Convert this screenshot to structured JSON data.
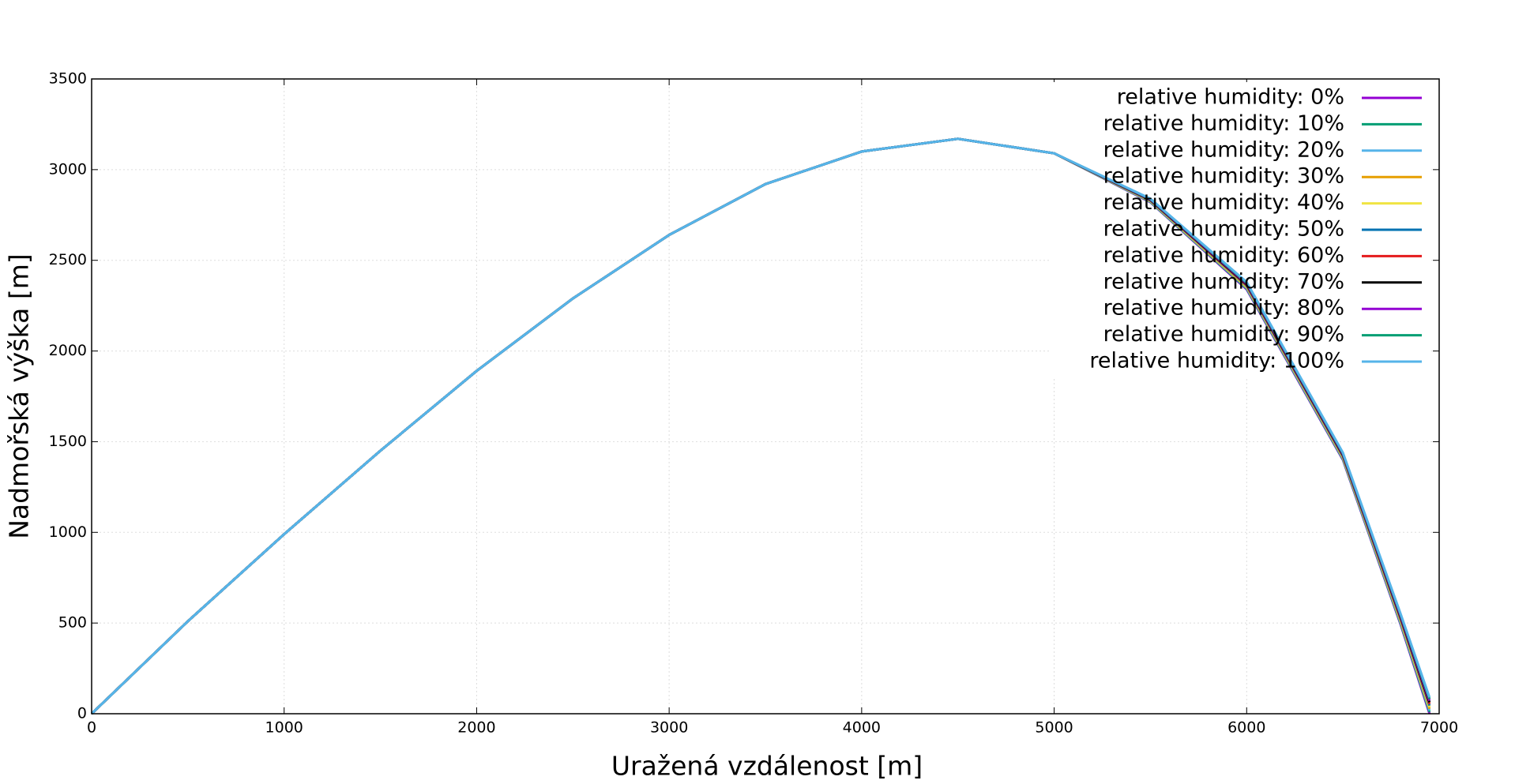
{
  "chart_data": {
    "type": "line",
    "xlabel": "Uražená vzdálenost [m]",
    "ylabel": "Nadmořská výška [m]",
    "x": [
      0,
      500,
      1000,
      1500,
      2000,
      2500,
      3000,
      3500,
      4000,
      4500,
      5000,
      5500,
      6000,
      6500,
      6800,
      6950
    ],
    "series": [
      {
        "name": "relative humidity: 0%",
        "color": "#9400d3",
        "values": [
          0,
          510,
          990,
          1450,
          1890,
          2290,
          2640,
          2920,
          3100,
          3170,
          3090,
          2820,
          2340,
          1400,
          490,
          0
        ]
      },
      {
        "name": "relative humidity: 10%",
        "color": "#009e73",
        "values": [
          0,
          510,
          990,
          1450,
          1890,
          2290,
          2640,
          2920,
          3100,
          3170,
          3090,
          2822,
          2344,
          1404,
          496,
          9
        ]
      },
      {
        "name": "relative humidity: 20%",
        "color": "#56b4e9",
        "values": [
          0,
          510,
          990,
          1450,
          1890,
          2290,
          2640,
          2920,
          3100,
          3170,
          3090,
          2824,
          2348,
          1408,
          502,
          18
        ]
      },
      {
        "name": "relative humidity: 30%",
        "color": "#e69f00",
        "values": [
          0,
          510,
          990,
          1450,
          1890,
          2290,
          2640,
          2920,
          3100,
          3170,
          3090,
          2826,
          2352,
          1412,
          508,
          27
        ]
      },
      {
        "name": "relative humidity: 40%",
        "color": "#f0e442",
        "values": [
          0,
          510,
          990,
          1450,
          1890,
          2290,
          2640,
          2920,
          3100,
          3170,
          3090,
          2828,
          2356,
          1416,
          514,
          36
        ]
      },
      {
        "name": "relative humidity: 50%",
        "color": "#0072b2",
        "values": [
          0,
          510,
          990,
          1450,
          1890,
          2290,
          2640,
          2920,
          3100,
          3170,
          3090,
          2830,
          2360,
          1420,
          520,
          45
        ]
      },
      {
        "name": "relative humidity: 60%",
        "color": "#e41a1c",
        "values": [
          0,
          510,
          990,
          1450,
          1890,
          2290,
          2640,
          2920,
          3100,
          3170,
          3090,
          2832,
          2364,
          1424,
          526,
          54
        ]
      },
      {
        "name": "relative humidity: 70%",
        "color": "#000000",
        "values": [
          0,
          510,
          990,
          1450,
          1890,
          2290,
          2640,
          2920,
          3100,
          3170,
          3090,
          2834,
          2368,
          1428,
          532,
          63
        ]
      },
      {
        "name": "relative humidity: 80%",
        "color": "#9400d3",
        "values": [
          0,
          510,
          990,
          1450,
          1890,
          2290,
          2640,
          2920,
          3100,
          3170,
          3090,
          2836,
          2372,
          1432,
          538,
          72
        ]
      },
      {
        "name": "relative humidity: 90%",
        "color": "#009e73",
        "values": [
          0,
          510,
          990,
          1450,
          1890,
          2290,
          2640,
          2920,
          3100,
          3170,
          3090,
          2838,
          2376,
          1436,
          544,
          81
        ]
      },
      {
        "name": "relative humidity: 100%",
        "color": "#56b4e9",
        "values": [
          0,
          510,
          990,
          1450,
          1890,
          2290,
          2640,
          2920,
          3100,
          3170,
          3090,
          2840,
          2380,
          1440,
          550,
          90
        ]
      }
    ],
    "xlim": [
      0,
      7000
    ],
    "xticks": [
      0,
      1000,
      2000,
      3000,
      4000,
      5000,
      6000,
      7000
    ],
    "ylim": [
      0,
      3500
    ],
    "yticks": [
      0,
      500,
      1000,
      1500,
      2000,
      2500,
      3000,
      3500
    ],
    "grid": true,
    "legend": "upper right"
  }
}
